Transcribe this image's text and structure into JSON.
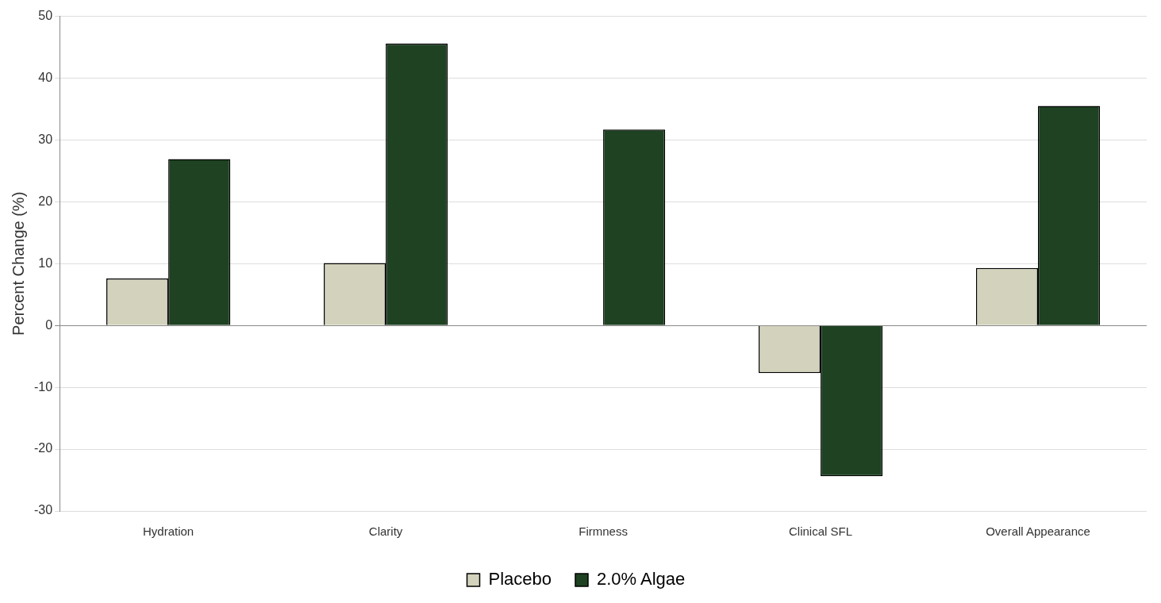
{
  "chart_data": {
    "type": "bar",
    "ylabel": "Percent Change (%)",
    "categories": [
      "Hydration",
      "Clarity",
      "Firmness",
      "Clinical SFL",
      "Overall Appearance"
    ],
    "series": [
      {
        "name": "Placebo",
        "color": "#d3d3bd",
        "values": [
          7.6,
          10.1,
          null,
          -7.7,
          9.3
        ]
      },
      {
        "name": "2.0% Algae",
        "color": "#1e4222",
        "values": [
          26.9,
          45.6,
          31.7,
          -24.4,
          35.5
        ]
      }
    ],
    "ylim": [
      -30,
      50
    ],
    "yticks": [
      -30,
      -20,
      -10,
      0,
      10,
      20,
      30,
      40,
      50
    ],
    "grid": "y",
    "legend": "bottom"
  }
}
